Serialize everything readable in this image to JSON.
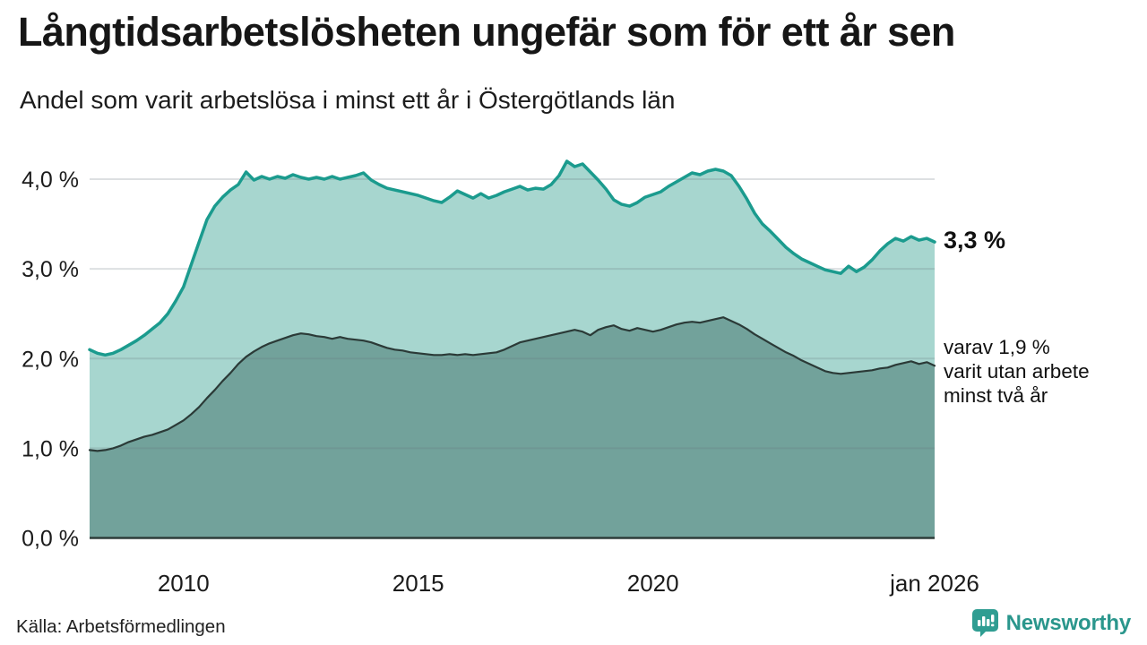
{
  "header": {
    "title": "Långtidsarbetslösheten ungefär som för ett år sen",
    "subtitle": "Andel som varit arbetslösa i minst ett år i Östergötlands län"
  },
  "annotations": {
    "latest_total": "3,3 %",
    "secondary": [
      "varav 1,9 %",
      "varit utan arbete",
      "minst två år"
    ]
  },
  "footer": {
    "source": "Källa: Arbetsförmedlingen",
    "brand": "Newsworthy"
  },
  "colors": {
    "total_line": "#1b9b8e",
    "total_fill": "#a7d6cf",
    "two_year_line": "#2b3a37",
    "two_year_fill": "#72a29b",
    "axis_line": "#2e3d3a",
    "gridline": "rgba(100,112,122,0.22)",
    "tick_text": "#1b1b1b",
    "brand_teal": "#2f9d92"
  },
  "chart_data": {
    "type": "area",
    "title": "Långtidsarbetslösheten ungefär som för ett år sen",
    "subtitle": "Andel som varit arbetslösa i minst ett år i Östergötlands län",
    "x_domain": [
      2008,
      2026
    ],
    "ylim": [
      0,
      4.35
    ],
    "grid": "horizontal",
    "y_ticks": [
      {
        "value": 0.0,
        "label": "0,0 %"
      },
      {
        "value": 1.0,
        "label": "1,0 %"
      },
      {
        "value": 2.0,
        "label": "2,0 %"
      },
      {
        "value": 3.0,
        "label": "3,0 %"
      },
      {
        "value": 4.0,
        "label": "4,0 %"
      }
    ],
    "x_ticks": [
      {
        "value": 2010,
        "label": "2010"
      },
      {
        "value": 2015,
        "label": "2015"
      },
      {
        "value": 2020,
        "label": "2020"
      },
      {
        "value": 2026,
        "label": "jan 2026"
      }
    ],
    "x": [
      2008,
      2008.167,
      2008.333,
      2008.5,
      2008.667,
      2008.833,
      2009,
      2009.167,
      2009.333,
      2009.5,
      2009.667,
      2009.833,
      2010,
      2010.167,
      2010.333,
      2010.5,
      2010.667,
      2010.833,
      2011,
      2011.167,
      2011.333,
      2011.5,
      2011.667,
      2011.833,
      2012,
      2012.167,
      2012.333,
      2012.5,
      2012.667,
      2012.833,
      2013,
      2013.167,
      2013.333,
      2013.5,
      2013.667,
      2013.833,
      2014,
      2014.167,
      2014.333,
      2014.5,
      2014.667,
      2014.833,
      2015,
      2015.167,
      2015.333,
      2015.5,
      2015.667,
      2015.833,
      2016,
      2016.167,
      2016.333,
      2016.5,
      2016.667,
      2016.833,
      2017,
      2017.167,
      2017.333,
      2017.5,
      2017.667,
      2017.833,
      2018,
      2018.167,
      2018.333,
      2018.5,
      2018.667,
      2018.833,
      2019,
      2019.167,
      2019.333,
      2019.5,
      2019.667,
      2019.833,
      2020,
      2020.167,
      2020.333,
      2020.5,
      2020.667,
      2020.833,
      2021,
      2021.167,
      2021.333,
      2021.5,
      2021.667,
      2021.833,
      2022,
      2022.167,
      2022.333,
      2022.5,
      2022.667,
      2022.833,
      2023,
      2023.167,
      2023.333,
      2023.5,
      2023.667,
      2023.833,
      2024,
      2024.167,
      2024.333,
      2024.5,
      2024.667,
      2024.833,
      2025,
      2025.167,
      2025.333,
      2025.5,
      2025.667,
      2025.833,
      2026
    ],
    "series": [
      {
        "name": "Arbetslösa minst ett år",
        "latest_value": 3.3,
        "values": [
          2.1,
          2.06,
          2.04,
          2.06,
          2.1,
          2.15,
          2.2,
          2.26,
          2.33,
          2.4,
          2.5,
          2.64,
          2.8,
          3.05,
          3.3,
          3.55,
          3.7,
          3.8,
          3.88,
          3.94,
          4.08,
          3.99,
          4.03,
          4.0,
          4.03,
          4.01,
          4.05,
          4.02,
          4.0,
          4.02,
          4.0,
          4.03,
          4.0,
          4.02,
          4.04,
          4.07,
          3.99,
          3.94,
          3.9,
          3.88,
          3.86,
          3.84,
          3.82,
          3.79,
          3.76,
          3.74,
          3.8,
          3.87,
          3.83,
          3.79,
          3.84,
          3.79,
          3.82,
          3.86,
          3.89,
          3.92,
          3.88,
          3.9,
          3.89,
          3.94,
          4.04,
          4.2,
          4.14,
          4.17,
          4.08,
          3.99,
          3.89,
          3.77,
          3.72,
          3.7,
          3.74,
          3.8,
          3.83,
          3.86,
          3.92,
          3.97,
          4.02,
          4.07,
          4.05,
          4.09,
          4.11,
          4.09,
          4.04,
          3.92,
          3.78,
          3.62,
          3.5,
          3.42,
          3.33,
          3.24,
          3.17,
          3.11,
          3.07,
          3.03,
          2.99,
          2.97,
          2.95,
          3.03,
          2.97,
          3.02,
          3.1,
          3.2,
          3.28,
          3.34,
          3.31,
          3.36,
          3.32,
          3.34,
          3.3
        ]
      },
      {
        "name": "varav utan arbete minst två år",
        "latest_value": 1.9,
        "values": [
          0.98,
          0.97,
          0.98,
          1.0,
          1.03,
          1.07,
          1.1,
          1.13,
          1.15,
          1.18,
          1.21,
          1.26,
          1.31,
          1.38,
          1.46,
          1.56,
          1.65,
          1.75,
          1.84,
          1.94,
          2.02,
          2.08,
          2.13,
          2.17,
          2.2,
          2.23,
          2.26,
          2.28,
          2.27,
          2.25,
          2.24,
          2.22,
          2.24,
          2.22,
          2.21,
          2.2,
          2.18,
          2.15,
          2.12,
          2.1,
          2.09,
          2.07,
          2.06,
          2.05,
          2.04,
          2.04,
          2.05,
          2.04,
          2.05,
          2.04,
          2.05,
          2.06,
          2.07,
          2.1,
          2.14,
          2.18,
          2.2,
          2.22,
          2.24,
          2.26,
          2.28,
          2.3,
          2.32,
          2.3,
          2.26,
          2.32,
          2.35,
          2.37,
          2.33,
          2.31,
          2.34,
          2.32,
          2.3,
          2.32,
          2.35,
          2.38,
          2.4,
          2.41,
          2.4,
          2.42,
          2.44,
          2.46,
          2.42,
          2.38,
          2.33,
          2.27,
          2.22,
          2.17,
          2.12,
          2.07,
          2.03,
          1.98,
          1.94,
          1.9,
          1.86,
          1.84,
          1.83,
          1.84,
          1.85,
          1.86,
          1.87,
          1.89,
          1.9,
          1.93,
          1.95,
          1.97,
          1.94,
          1.96,
          1.92
        ]
      }
    ]
  }
}
